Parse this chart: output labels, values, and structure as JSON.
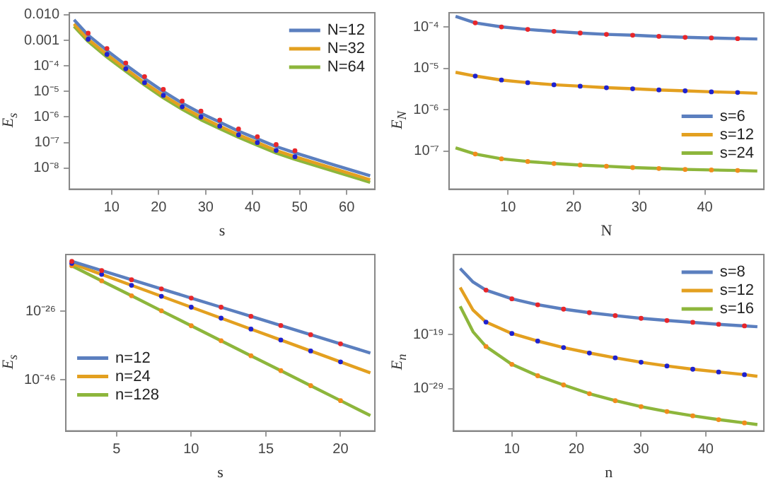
{
  "chart_data": [
    {
      "type": "line",
      "xlabel": "s",
      "ylabel": "E$_{s}$",
      "log": "y",
      "legend": "top right",
      "xlim": [
        1,
        66
      ],
      "xticks": [
        10,
        20,
        30,
        40,
        50,
        60
      ],
      "ylim": [
        1.5e-09,
        0.012
      ],
      "yticks": [
        {
          "value": 0.01,
          "label": "0.010"
        },
        0.001,
        {
          "value": 0.0001,
          "label": "10⁻⁴"
        },
        {
          "value": 1e-05,
          "label": "10⁻⁵"
        },
        {
          "value": 1e-06,
          "label": "10⁻⁶"
        },
        {
          "value": 1e-07,
          "label": "10⁻⁷"
        },
        {
          "value": 1e-08,
          "label": "10⁻⁸"
        }
      ],
      "x": [
        2,
        5,
        9,
        13,
        17,
        21,
        25,
        29,
        33,
        37,
        41,
        45,
        49,
        57,
        65
      ],
      "series": [
        {
          "name": "N=12",
          "color": "#5b7fbf",
          "values": [
            0.0063,
            0.0016,
            0.0004,
            0.00011,
            3.2e-05,
            1e-05,
            3.5e-06,
            1.4e-06,
            6.3e-07,
            2.8e-07,
            1.4e-07,
            7e-08,
            4e-08,
            1.4e-08,
            5e-09
          ]
        },
        {
          "name": "N=32",
          "color": "#e3a020",
          "values": [
            0.0044,
            0.0011,
            0.00028,
            7.7e-05,
            2.2e-05,
            7e-06,
            2.5e-06,
            1e-06,
            4.4e-07,
            2e-07,
            1e-07,
            4.9e-08,
            2.8e-08,
            1e-08,
            3.5e-09
          ]
        },
        {
          "name": "N=64",
          "color": "#8db63c",
          "values": [
            0.0035,
            0.0009,
            0.00022,
            6.2e-05,
            1.8e-05,
            5.6e-06,
            2e-06,
            7.8e-07,
            3.5e-07,
            1.6e-07,
            7.8e-08,
            3.9e-08,
            2.2e-08,
            7.8e-09,
            2.8e-09
          ]
        },
        {
          "type": "scatter",
          "marker": "circle",
          "color": "#e8262a",
          "x": [
            5,
            9,
            13,
            17,
            21,
            25,
            29,
            33,
            37,
            41,
            45,
            49
          ],
          "values": [
            0.0019,
            0.00048,
            0.00013,
            3.8e-05,
            1.2e-05,
            4.2e-06,
            1.7e-06,
            7.6e-07,
            3.4e-07,
            1.7e-07,
            8.4e-08,
            4.8e-08
          ]
        },
        {
          "type": "scatter",
          "marker": "circle",
          "color": "#1f22d0",
          "x": [
            5,
            9,
            13,
            17,
            21,
            25,
            29,
            33,
            37,
            41,
            45,
            49
          ],
          "values": [
            0.0011,
            0.00028,
            7.7e-05,
            2.2e-05,
            7e-06,
            2.5e-06,
            1e-06,
            4.4e-07,
            2e-07,
            1e-07,
            4.9e-08,
            2.8e-08
          ]
        }
      ]
    },
    {
      "type": "line",
      "xlabel": "N",
      "ylabel": "E$_{N}$",
      "log": "y",
      "legend": "bottom right",
      "xlim": [
        1,
        49
      ],
      "xticks": [
        10,
        20,
        30,
        40
      ],
      "ylim": [
        1.2e-08,
        0.00022
      ],
      "yticks": [
        {
          "value": 0.0001,
          "label": "10⁻⁴"
        },
        {
          "value": 1e-05,
          "label": "10⁻⁵"
        },
        {
          "value": 1e-06,
          "label": "10⁻⁶"
        },
        {
          "value": 1e-07,
          "label": "10⁻⁷"
        }
      ],
      "x": [
        2,
        5,
        9,
        13,
        17,
        21,
        25,
        29,
        33,
        37,
        41,
        45,
        48
      ],
      "series": [
        {
          "name": "s=6",
          "color": "#5b7fbf",
          "values": [
            0.00018,
            0.000125,
            0.0001,
            8.7e-05,
            7.8e-05,
            7.1e-05,
            6.6e-05,
            6.3e-05,
            5.9e-05,
            5.6e-05,
            5.4e-05,
            5.2e-05,
            5.1e-05
          ]
        },
        {
          "name": "s=12",
          "color": "#e3a020",
          "values": [
            8e-06,
            6.5e-06,
            5.2e-06,
            4.5e-06,
            4e-06,
            3.7e-06,
            3.4e-06,
            3.2e-06,
            3e-06,
            2.85e-06,
            2.7e-06,
            2.6e-06,
            2.5e-06
          ]
        },
        {
          "name": "s=24",
          "color": "#8db63c",
          "values": [
            1.2e-07,
            8.5e-08,
            6.5e-08,
            5.6e-08,
            5e-08,
            4.6e-08,
            4.3e-08,
            4e-08,
            3.8e-08,
            3.6e-08,
            3.5e-08,
            3.4e-08,
            3.3e-08
          ]
        },
        {
          "type": "scatter",
          "marker": "circle",
          "color": "#e8262a",
          "x": [
            5,
            9,
            13,
            17,
            21,
            25,
            29,
            33,
            37,
            41,
            45
          ],
          "values": [
            0.000125,
            0.0001,
            8.7e-05,
            7.8e-05,
            7.1e-05,
            6.6e-05,
            6.3e-05,
            5.9e-05,
            5.6e-05,
            5.4e-05,
            5.2e-05
          ]
        },
        {
          "type": "scatter",
          "marker": "circle",
          "color": "#1f22d0",
          "x": [
            5,
            9,
            13,
            17,
            21,
            25,
            29,
            33,
            37,
            41,
            45
          ],
          "values": [
            6.5e-06,
            5.2e-06,
            4.5e-06,
            4e-06,
            3.7e-06,
            3.4e-06,
            3.2e-06,
            3e-06,
            2.85e-06,
            2.7e-06,
            2.6e-06
          ]
        },
        {
          "type": "scatter",
          "marker": "circle",
          "color": "#f08c1c",
          "x": [
            5,
            9,
            13,
            17,
            21,
            25,
            29,
            33,
            37,
            41,
            45
          ],
          "values": [
            8.5e-08,
            6.5e-08,
            5.6e-08,
            5e-08,
            4.6e-08,
            4.3e-08,
            4e-08,
            3.8e-08,
            3.6e-08,
            3.5e-08,
            3.4e-08
          ]
        }
      ]
    },
    {
      "type": "line",
      "xlabel": "s",
      "ylabel": "E$_{s}$",
      "log": "y",
      "legend": "bottom left",
      "xlim": [
        1.6,
        22.3
      ],
      "xticks": [
        5,
        10,
        15,
        20
      ],
      "ylim": [
        1e-61,
        4e-10
      ],
      "yticks": [
        {
          "value": 1e-26,
          "label": "10⁻²⁶"
        },
        {
          "value": 1e-46,
          "label": "10⁻⁴⁶"
        }
      ],
      "x": [
        2,
        4,
        6,
        8,
        10,
        12,
        14,
        16,
        18,
        20,
        22
      ],
      "series": [
        {
          "name": "n=12",
          "color": "#5b7fbf",
          "values": [
            4e-12,
            8.3e-15,
            1.7e-17,
            3.6e-20,
            7.6e-23,
            1.6e-25,
            3.3e-28,
            6.9e-31,
            1.4e-33,
            3e-36,
            6.3e-39
          ]
        },
        {
          "name": "n=24",
          "color": "#e3a020",
          "values": [
            1e-12,
            6.3e-16,
            4e-19,
            2.5e-22,
            1.6e-25,
            1e-28,
            6.3e-32,
            4e-35,
            2.5e-38,
            1.6e-41,
            1e-44
          ]
        },
        {
          "name": "n=128",
          "color": "#8db63c",
          "values": [
            2e-13,
            8.3e-18,
            3.5e-22,
            1.4e-26,
            6e-31,
            2.5e-35,
            1e-39,
            4.4e-44,
            1.8e-48,
            7.6e-53,
            3.2e-57
          ]
        },
        {
          "type": "scatter",
          "marker": "circle",
          "color": "#e8262a",
          "x": [
            2,
            4,
            6,
            8,
            10,
            12,
            14,
            16,
            18,
            20
          ],
          "values": [
            4e-12,
            8.3e-15,
            1.7e-17,
            3.6e-20,
            7.6e-23,
            1.6e-25,
            3.3e-28,
            6.9e-31,
            1.4e-33,
            3e-36
          ]
        },
        {
          "type": "scatter",
          "marker": "circle",
          "color": "#1f22d0",
          "x": [
            2,
            4,
            6,
            8,
            10,
            12,
            14,
            16,
            18,
            20
          ],
          "values": [
            1e-12,
            6.3e-16,
            4e-19,
            2.5e-22,
            1.6e-25,
            1e-28,
            6.3e-32,
            4e-35,
            2.5e-38,
            1.6e-41
          ]
        },
        {
          "type": "scatter",
          "marker": "circle",
          "color": "#f08c1c",
          "x": [
            2,
            4,
            6,
            8,
            10,
            12,
            14,
            16,
            18,
            20
          ],
          "values": [
            2e-13,
            8.3e-18,
            3.5e-22,
            1.4e-26,
            6e-31,
            2.5e-35,
            1e-39,
            4.4e-44,
            1.8e-48,
            7.6e-53
          ]
        }
      ]
    },
    {
      "type": "line",
      "xlabel": "n",
      "ylabel": "E$_{n}$",
      "log": "y",
      "legend": "top right",
      "xlim": [
        1,
        49
      ],
      "xticks": [
        10,
        20,
        30,
        40
      ],
      "ylim": [
        1.6e-37,
        6e-05
      ],
      "yticks": [
        {
          "value": 1e-19,
          "label": "10⁻¹⁹"
        },
        {
          "value": 1e-29,
          "label": "10⁻²⁹"
        }
      ],
      "x": [
        2,
        4,
        6,
        10,
        14,
        18,
        22,
        26,
        30,
        34,
        38,
        42,
        46,
        48
      ],
      "series": [
        {
          "name": "s=8",
          "color": "#5b7fbf",
          "values": [
            1.6e-07,
            5e-10,
            1.6e-11,
            4e-13,
            3.2e-14,
            5e-15,
            1.1e-15,
            3.2e-16,
            1e-16,
            4e-17,
            1.8e-17,
            7.9e-18,
            4e-18,
            2.8e-18
          ]
        },
        {
          "name": "s=12",
          "color": "#e3a020",
          "values": [
            5e-11,
            3.2e-15,
            2e-17,
            1.6e-19,
            6.3e-21,
            4e-22,
            4e-23,
            5e-24,
            7.9e-25,
            1.6e-25,
            4e-26,
            1.25e-26,
            4e-27,
            2e-27
          ]
        },
        {
          "name": "s=16",
          "color": "#8db63c",
          "values": [
            1.6e-14,
            3.2e-19,
            6.3e-22,
            3.2e-25,
            2.5e-27,
            5e-29,
            1.25e-30,
            6.3e-32,
            5e-33,
            6.3e-34,
            1e-34,
            2e-35,
            5e-36,
            2.5e-36
          ]
        },
        {
          "type": "scatter",
          "marker": "circle",
          "color": "#e8262a",
          "x": [
            6,
            10,
            14,
            18,
            22,
            26,
            30,
            34,
            38,
            42,
            46
          ],
          "values": [
            1.6e-11,
            4e-13,
            3.2e-14,
            5e-15,
            1.1e-15,
            3.2e-16,
            1e-16,
            4e-17,
            1.8e-17,
            7.9e-18,
            4e-18
          ]
        },
        {
          "type": "scatter",
          "marker": "circle",
          "color": "#1f22d0",
          "x": [
            6,
            10,
            14,
            18,
            22,
            26,
            30,
            34,
            38,
            42,
            46
          ],
          "values": [
            2e-17,
            1.6e-19,
            6.3e-21,
            4e-22,
            4e-23,
            5e-24,
            7.9e-25,
            1.6e-25,
            4e-26,
            1.25e-26,
            4e-27
          ]
        },
        {
          "type": "scatter",
          "marker": "circle",
          "color": "#f08c1c",
          "x": [
            6,
            10,
            14,
            18,
            22,
            26,
            30,
            34,
            38,
            42,
            46
          ],
          "values": [
            6.3e-22,
            3.2e-25,
            2.5e-27,
            5e-29,
            1.25e-30,
            6.3e-32,
            5e-33,
            6.3e-34,
            1e-34,
            2e-35,
            5e-36
          ]
        }
      ]
    }
  ]
}
